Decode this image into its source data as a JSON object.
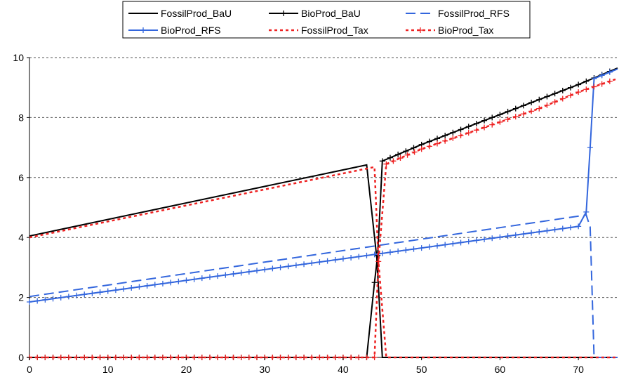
{
  "chart_data": {
    "type": "line",
    "title": "",
    "xlabel": "",
    "ylabel": "",
    "xlim": [
      0,
      75
    ],
    "ylim": [
      0,
      10
    ],
    "x_ticks": [
      0,
      10,
      20,
      30,
      40,
      50,
      60,
      70
    ],
    "y_ticks": [
      0,
      2,
      4,
      6,
      8,
      10
    ],
    "grid": "horizontal dotted",
    "legend_position": "top-center",
    "series": [
      {
        "name": "FossilProd_BaU",
        "color": "#000000",
        "dash": "solid",
        "marker": "none",
        "x": [
          0,
          43,
          44.3,
          45,
          75
        ],
        "y": [
          4.05,
          6.42,
          3.3,
          0,
          0
        ]
      },
      {
        "name": "BioProd_BaU",
        "color": "#000000",
        "dash": "solid",
        "marker": "plus",
        "x": [
          0,
          43,
          44,
          44.4,
          45,
          50,
          55,
          60,
          65,
          70,
          75
        ],
        "y": [
          0,
          0,
          2.5,
          3.4,
          6.55,
          7.1,
          7.6,
          8.1,
          8.6,
          9.1,
          9.65
        ]
      },
      {
        "name": "FossilProd_RFS",
        "color": "#3366dd",
        "dash": "dash",
        "marker": "none",
        "x": [
          0,
          71,
          71.5,
          72,
          75
        ],
        "y": [
          2.03,
          4.75,
          4.35,
          0,
          0
        ]
      },
      {
        "name": "BioProd_RFS",
        "color": "#3366dd",
        "dash": "solid",
        "marker": "plus",
        "x": [
          0,
          70,
          71,
          71.5,
          72,
          75
        ],
        "y": [
          1.85,
          4.37,
          4.85,
          7.0,
          9.3,
          9.62
        ]
      },
      {
        "name": "FossilProd_Tax",
        "color": "#ee2222",
        "dash": "dot",
        "marker": "none",
        "x": [
          0,
          44,
          44.5,
          45.5,
          75
        ],
        "y": [
          4.0,
          6.35,
          3.2,
          0,
          0
        ]
      },
      {
        "name": "BioProd_Tax",
        "color": "#ee2222",
        "dash": "dot",
        "marker": "plus",
        "x": [
          0,
          44,
          44.5,
          45.5,
          50,
          55,
          60,
          65,
          70,
          75
        ],
        "y": [
          0,
          0,
          3.2,
          6.45,
          6.95,
          7.4,
          7.85,
          8.3,
          8.85,
          9.3
        ]
      }
    ]
  }
}
